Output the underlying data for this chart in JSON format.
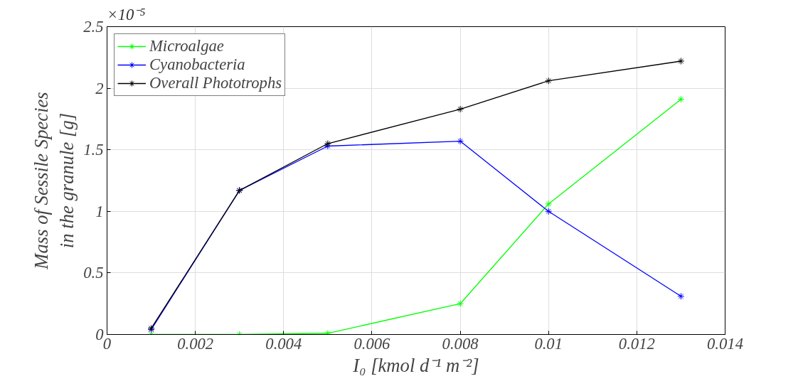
{
  "chart_data": {
    "type": "line",
    "xlabel": "I₀ [kmol d⁻¹ m⁻²]",
    "ylabel": "Mass of Sessile Species\nin the granule [g]",
    "annotations": [
      "×10⁻⁵"
    ],
    "x": [
      0.001,
      0.003,
      0.005,
      0.008,
      0.01,
      0.013
    ],
    "series": [
      {
        "name": "Microalgae",
        "color": "#00ff00",
        "values": [
          0,
          0,
          0.01,
          0.25,
          1.06,
          1.91
        ]
      },
      {
        "name": "Cyanobacteria",
        "color": "#0000ff",
        "values": [
          0.04,
          1.17,
          1.53,
          1.57,
          1.0,
          0.31
        ]
      },
      {
        "name": "Overall Phototrophs",
        "color": "#000000",
        "values": [
          0.05,
          1.17,
          1.55,
          1.83,
          2.06,
          2.22
        ]
      }
    ],
    "xlim": [
      0,
      0.014
    ],
    "xticks": [
      0,
      0.002,
      0.004,
      0.006,
      0.008,
      0.01,
      0.012,
      0.014
    ],
    "ylim": [
      0,
      2.5
    ],
    "yticks": [
      0,
      0.5,
      1,
      1.5,
      2,
      2.5
    ],
    "grid": true,
    "legend": "top left",
    "marker": "cross",
    "line_style": "solid"
  }
}
